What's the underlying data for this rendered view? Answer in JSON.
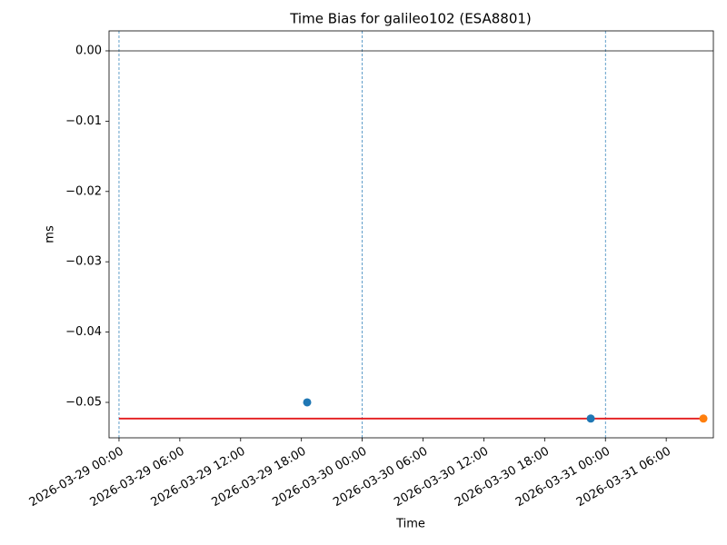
{
  "chart_data": {
    "type": "scatter",
    "title": "Time Bias for galileo102 (ESA8801)",
    "x_label": "Time",
    "y_label": "ms",
    "xlim": [
      "2026-03-28 23:01",
      "2026-03-31 10:39"
    ],
    "ylim": [
      -0.05504,
      0.00284
    ],
    "xticks": [
      "2026-03-29 00:00",
      "2026-03-29 06:00",
      "2026-03-29 12:00",
      "2026-03-29 18:00",
      "2026-03-30 00:00",
      "2026-03-30 06:00",
      "2026-03-30 12:00",
      "2026-03-30 18:00",
      "2026-03-31 00:00",
      "2026-03-31 06:00"
    ],
    "yticks": [
      {
        "value": 0,
        "label": "0.00"
      },
      {
        "value": -0.01,
        "label": "−0.01"
      },
      {
        "value": -0.02,
        "label": "−0.02"
      },
      {
        "value": -0.03,
        "label": "−0.03"
      },
      {
        "value": -0.04,
        "label": "−0.04"
      },
      {
        "value": -0.05,
        "label": "−0.05"
      }
    ],
    "series": [
      {
        "type": "scatter",
        "color": "#1f77b4",
        "x": [
          "2026-03-29 18:34",
          "2026-03-30 22:33"
        ],
        "values": [
          -0.05,
          -0.0523
        ]
      },
      {
        "type": "scatter",
        "color": "#ff7f0e",
        "x": [
          "2026-03-31 09:40"
        ],
        "values": [
          -0.0523
        ]
      },
      {
        "type": "line",
        "color": "#e41a1c",
        "x": [
          "2026-03-29 00:00",
          "2026-03-31 09:40"
        ],
        "values": [
          -0.0523,
          -0.0523
        ]
      }
    ],
    "hlines": [
      {
        "value": 0,
        "color": "#000000"
      }
    ],
    "vlines": {
      "color": "#1f77b4",
      "style": "dashed",
      "x": [
        "2026-03-29 00:00",
        "2026-03-30 00:00",
        "2026-03-31 00:00"
      ]
    }
  }
}
